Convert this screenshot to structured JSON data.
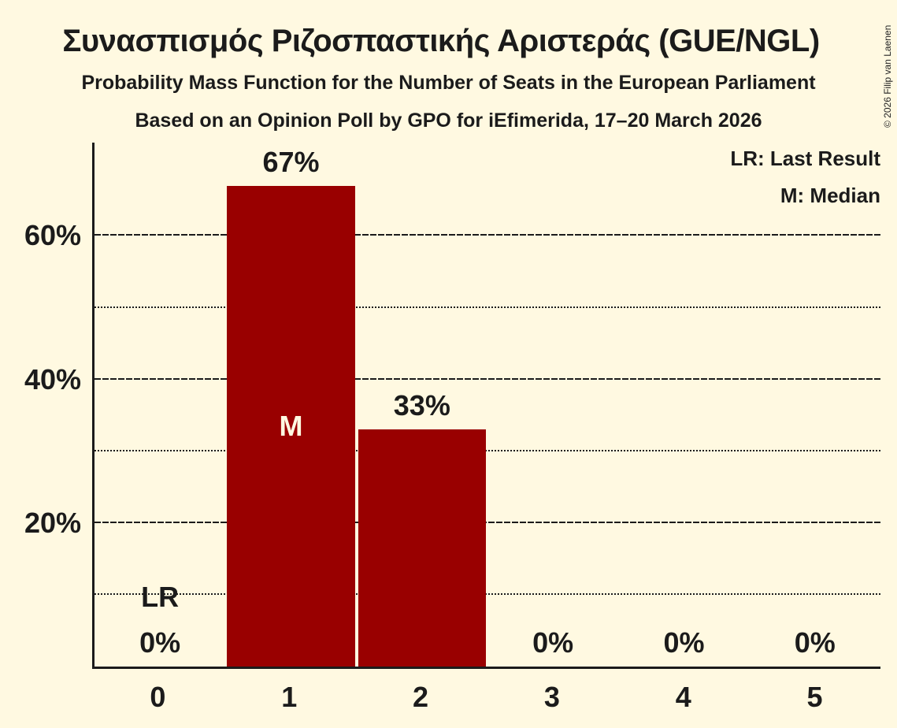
{
  "chart_data": {
    "type": "bar",
    "title": "Συνασπισμός Ριζοσπαστικής Αριστεράς (GUE/NGL)",
    "subtitle": "Probability Mass Function for the Number of Seats in the European Parliament",
    "source": "Based on an Opinion Poll by GPO for iEfimerida, 17–20 March 2026",
    "categories": [
      "0",
      "1",
      "2",
      "3",
      "4",
      "5"
    ],
    "values": [
      0,
      67,
      33,
      0,
      0,
      0
    ],
    "value_labels": [
      "0%",
      "67%",
      "33%",
      "0%",
      "0%",
      "0%"
    ],
    "yticks": [
      {
        "value": 20,
        "label": "20%"
      },
      {
        "value": 40,
        "label": "40%"
      },
      {
        "value": 60,
        "label": "60%"
      }
    ],
    "minor_gridlines": [
      10,
      30,
      50
    ],
    "ylim": [
      0,
      73
    ],
    "grid": true,
    "legend": {
      "position": "top-right",
      "items": [
        "LR: Last Result",
        "M: Median"
      ]
    },
    "annotations": {
      "median": {
        "category": "1",
        "label": "M"
      },
      "last_result": {
        "category": "0",
        "label": "LR"
      }
    },
    "colors": {
      "bar": "#990000",
      "background": "#FFF9E1",
      "text": "#1B1B1B"
    },
    "copyright": "© 2026 Filip van Laenen"
  }
}
